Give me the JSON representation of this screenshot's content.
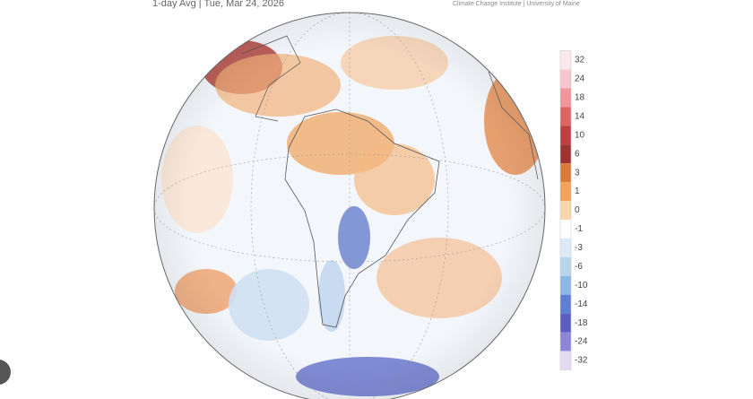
{
  "header": {
    "title": "1-day Avg | Tue, Mar 24, 2026",
    "credit": "Climate Change Institute | University of Maine"
  },
  "colorbar": {
    "ticks": [
      32,
      24,
      18,
      14,
      10,
      6,
      3,
      1,
      0,
      -1,
      -3,
      -6,
      -10,
      -14,
      -18,
      -24,
      -32
    ],
    "colors": [
      "#fbe9ee",
      "#f6c6cc",
      "#ee9699",
      "#df6460",
      "#c13d3f",
      "#9d3431",
      "#d97b3b",
      "#f2a45c",
      "#f9d5ab",
      "#ffffff",
      "#dce9f6",
      "#b7d4ef",
      "#8cb8e6",
      "#5f7fd0",
      "#5a5ec0",
      "#8c86d4",
      "#e5dbf1"
    ]
  }
}
